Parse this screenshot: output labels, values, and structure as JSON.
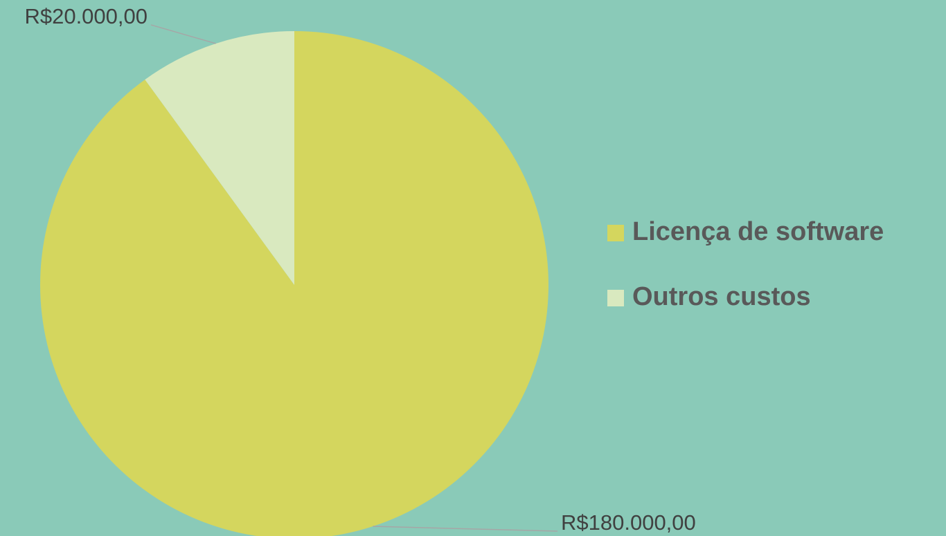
{
  "chart_data": {
    "type": "pie",
    "categories": [
      "Licença de software",
      "Outros custos"
    ],
    "values": [
      180000,
      20000
    ],
    "value_labels": [
      "R$180.000,00",
      "R$20.000,00"
    ],
    "colors": [
      "#d4d65e",
      "#d9e9bf"
    ],
    "legend": "right"
  }
}
